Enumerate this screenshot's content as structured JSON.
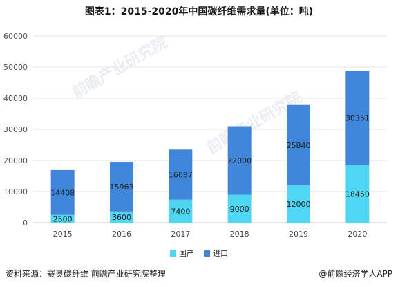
{
  "title": "图表1：2015-2020年中国碳纤维需求量(单位：吨)",
  "source": "资料来源：赛奥碳纤维 前瞻产业研究院整理",
  "brand": "@前瞻经济学人APP",
  "watermark": "前瞻产业研究院",
  "colors": {
    "domestic": "#4fd6f2",
    "import": "#3f86db",
    "grid": "#e3e3e3",
    "axis": "#cfcfcf"
  },
  "chart_data": {
    "type": "bar",
    "stacked": true,
    "categories": [
      "2015",
      "2016",
      "2017",
      "2018",
      "2019",
      "2020"
    ],
    "series": [
      {
        "name": "国产",
        "values": [
          2500,
          3600,
          7400,
          9000,
          12000,
          18450
        ]
      },
      {
        "name": "进口",
        "values": [
          14408,
          15963,
          16087,
          22000,
          25840,
          30351
        ]
      }
    ],
    "yticks": [
      "0",
      "10000",
      "20000",
      "30000",
      "40000",
      "50000",
      "60000"
    ],
    "ylim": [
      0,
      60000
    ],
    "grid": true,
    "legend_position": "bottom"
  }
}
